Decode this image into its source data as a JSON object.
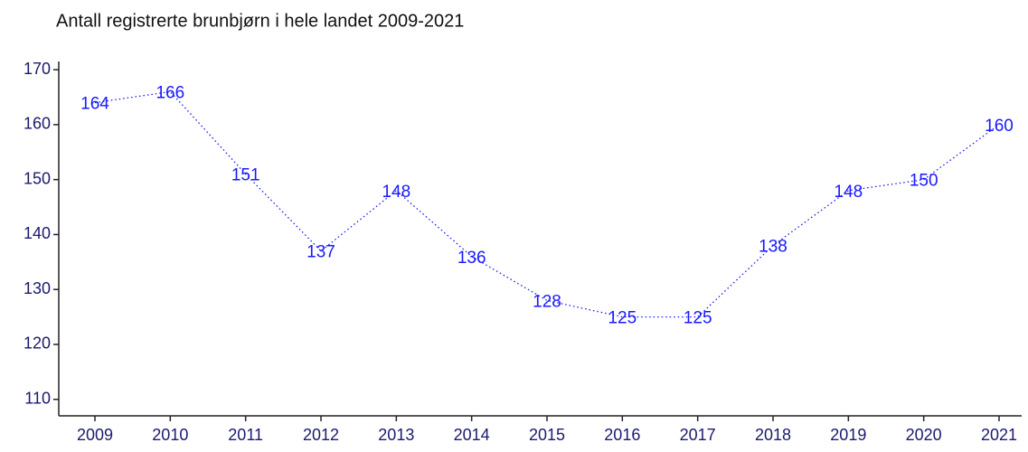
{
  "chart_data": {
    "type": "line",
    "title": "Antall registrerte brunbjørn i hele landet 2009-2021",
    "x": [
      2009,
      2010,
      2011,
      2012,
      2013,
      2014,
      2015,
      2016,
      2017,
      2018,
      2019,
      2020,
      2021
    ],
    "xlim": [
      2008.52,
      2021.3
    ],
    "xticks": [
      2009,
      2010,
      2011,
      2012,
      2013,
      2014,
      2015,
      2016,
      2017,
      2018,
      2019,
      2020,
      2021
    ],
    "series": [
      {
        "color": "#1a1aff",
        "values": [
          164,
          166,
          151,
          137,
          148,
          136,
          128,
          125,
          125,
          138,
          148,
          150,
          160
        ]
      }
    ],
    "ylim": [
      107,
      171.5
    ],
    "yticks": [
      110,
      120,
      130,
      140,
      150,
      160,
      170
    ],
    "line_style": "dotted"
  }
}
